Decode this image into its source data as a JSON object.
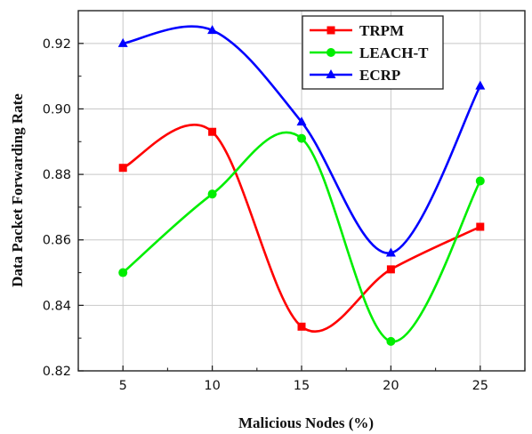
{
  "chart_data": {
    "type": "line",
    "xlabel": "Malicious Nodes (%)",
    "ylabel": "Data Packet Forwarding Rate",
    "x": [
      5,
      10,
      15,
      20,
      25
    ],
    "xlim": [
      2.5,
      27.5
    ],
    "ylim": [
      0.82,
      0.93
    ],
    "xticks": [
      "5",
      "10",
      "15",
      "20",
      "25"
    ],
    "yticks": [
      "0.82",
      "0.84",
      "0.86",
      "0.88",
      "0.90",
      "0.92"
    ],
    "grid": true,
    "legend_position": "top-right",
    "series": [
      {
        "name": "TRPM",
        "values": [
          0.882,
          0.893,
          0.8335,
          0.851,
          0.864
        ],
        "color": "#ff0000",
        "marker": "square"
      },
      {
        "name": "LEACH-T",
        "values": [
          0.85,
          0.874,
          0.891,
          0.829,
          0.878
        ],
        "color": "#00ee00",
        "marker": "circle"
      },
      {
        "name": "ECRP",
        "values": [
          0.92,
          0.924,
          0.896,
          0.856,
          0.907
        ],
        "color": "#0000ff",
        "marker": "triangle"
      }
    ]
  }
}
